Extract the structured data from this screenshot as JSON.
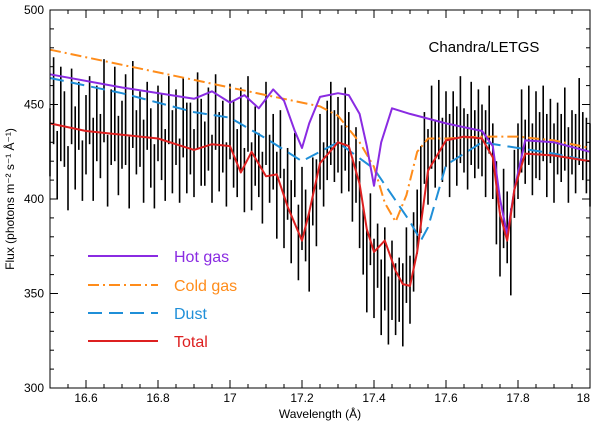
{
  "chart_data": {
    "type": "line",
    "title": "Chandra/LETGS",
    "xlabel": "Wavelength (Å)",
    "ylabel": "Flux (photons m⁻² s⁻¹ Å⁻¹)",
    "xlim": [
      16.5,
      18.0
    ],
    "ylim": [
      300,
      500
    ],
    "xticks": [
      16.6,
      16.8,
      17,
      17.2,
      17.4,
      17.6,
      17.8,
      18
    ],
    "xtick_labels": [
      "16.6",
      "16.8",
      "17",
      "17.2",
      "17.4",
      "17.6",
      "17.8",
      "18"
    ],
    "yticks": [
      300,
      350,
      400,
      450,
      500
    ],
    "ytick_labels": [
      "300",
      "350",
      "400",
      "450",
      "500"
    ],
    "legend_position": "lower-left",
    "series": [
      {
        "name": "Hot gas",
        "color": "#8a2be2",
        "style": "solid",
        "x": [
          16.5,
          16.7,
          16.9,
          16.95,
          17.0,
          17.04,
          17.08,
          17.12,
          17.15,
          17.18,
          17.2,
          17.22,
          17.25,
          17.3,
          17.33,
          17.36,
          17.38,
          17.4,
          17.42,
          17.45,
          17.5,
          17.6,
          17.7,
          17.73,
          17.75,
          17.77,
          17.79,
          17.82,
          17.9,
          18.0
        ],
        "y": [
          466,
          459,
          453,
          457,
          451,
          455,
          448,
          458,
          452,
          436,
          427,
          440,
          454,
          456,
          455,
          445,
          428,
          407,
          430,
          448,
          445,
          440,
          436,
          428,
          400,
          381,
          405,
          431,
          430,
          425
        ]
      },
      {
        "name": "Cold gas",
        "color": "#ff8c1a",
        "style": "dashdot",
        "x": [
          16.5,
          16.7,
          16.9,
          17.1,
          17.25,
          17.3,
          17.33,
          17.36,
          17.4,
          17.43,
          17.46,
          17.49,
          17.52,
          17.55,
          17.6,
          17.7,
          17.8,
          17.9,
          18.0
        ],
        "y": [
          479,
          471,
          463,
          455,
          449,
          444,
          437,
          430,
          417,
          398,
          388,
          402,
          425,
          432,
          432,
          433,
          433,
          431,
          427
        ]
      },
      {
        "name": "Dust",
        "color": "#1f8fd8",
        "style": "dashed",
        "x": [
          16.5,
          16.7,
          16.9,
          17.0,
          17.1,
          17.2,
          17.3,
          17.4,
          17.45,
          17.5,
          17.53,
          17.55,
          17.6,
          17.7,
          17.8,
          17.9,
          18.0
        ],
        "y": [
          464,
          456,
          446,
          443,
          432,
          420,
          430,
          416,
          402,
          388,
          378,
          385,
          418,
          430,
          427,
          424,
          420
        ]
      },
      {
        "name": "Total",
        "color": "#dd2020",
        "style": "solid",
        "x": [
          16.5,
          16.6,
          16.8,
          16.9,
          16.95,
          17.0,
          17.03,
          17.06,
          17.1,
          17.13,
          17.16,
          17.2,
          17.22,
          17.25,
          17.3,
          17.33,
          17.36,
          17.38,
          17.4,
          17.43,
          17.46,
          17.48,
          17.5,
          17.52,
          17.55,
          17.6,
          17.65,
          17.7,
          17.73,
          17.75,
          17.77,
          17.79,
          17.82,
          17.9,
          18.0
        ],
        "y": [
          440,
          436,
          432,
          426,
          429,
          428,
          414,
          425,
          412,
          413,
          396,
          378,
          393,
          419,
          430,
          428,
          408,
          384,
          372,
          378,
          362,
          355,
          354,
          372,
          415,
          431,
          433,
          432,
          422,
          392,
          378,
          405,
          424,
          423,
          420
        ]
      }
    ],
    "observed": {
      "name": "Observed data",
      "color": "#000000",
      "x": [
        16.5,
        16.51,
        16.52,
        16.53,
        16.54,
        16.55,
        16.56,
        16.57,
        16.58,
        16.59,
        16.6,
        16.61,
        16.62,
        16.63,
        16.64,
        16.65,
        16.66,
        16.67,
        16.68,
        16.69,
        16.7,
        16.71,
        16.72,
        16.73,
        16.74,
        16.75,
        16.76,
        16.77,
        16.78,
        16.79,
        16.8,
        16.81,
        16.82,
        16.83,
        16.84,
        16.85,
        16.86,
        16.87,
        16.88,
        16.89,
        16.9,
        16.91,
        16.92,
        16.93,
        16.94,
        16.95,
        16.96,
        16.97,
        16.98,
        16.99,
        17.0,
        17.01,
        17.02,
        17.03,
        17.04,
        17.05,
        17.06,
        17.07,
        17.08,
        17.09,
        17.1,
        17.11,
        17.12,
        17.13,
        17.14,
        17.15,
        17.16,
        17.17,
        17.18,
        17.19,
        17.2,
        17.21,
        17.22,
        17.23,
        17.24,
        17.25,
        17.26,
        17.27,
        17.28,
        17.29,
        17.3,
        17.31,
        17.32,
        17.33,
        17.34,
        17.35,
        17.36,
        17.37,
        17.38,
        17.39,
        17.4,
        17.41,
        17.42,
        17.43,
        17.44,
        17.45,
        17.46,
        17.47,
        17.48,
        17.49,
        17.5,
        17.51,
        17.52,
        17.53,
        17.54,
        17.55,
        17.56,
        17.57,
        17.58,
        17.59,
        17.6,
        17.61,
        17.62,
        17.63,
        17.64,
        17.65,
        17.66,
        17.67,
        17.68,
        17.69,
        17.7,
        17.71,
        17.72,
        17.73,
        17.74,
        17.75,
        17.76,
        17.77,
        17.78,
        17.79,
        17.8,
        17.81,
        17.82,
        17.83,
        17.84,
        17.85,
        17.86,
        17.87,
        17.88,
        17.89,
        17.9,
        17.91,
        17.92,
        17.93,
        17.94,
        17.95,
        17.96,
        17.97,
        17.98,
        17.99,
        18.0
      ],
      "y": [
        430,
        452,
        418,
        445,
        437,
        411,
        449,
        427,
        444,
        415,
        434,
        447,
        421,
        440,
        428,
        452,
        415,
        438,
        445,
        423,
        434,
        442,
        414,
        450,
        430,
        437,
        420,
        444,
        427,
        412,
        440,
        433,
        418,
        447,
        425,
        438,
        415,
        443,
        427,
        432,
        419,
        447,
        430,
        424,
        437,
        416,
        446,
        425,
        433,
        413,
        441,
        429,
        419,
        437,
        410,
        445,
        412,
        428,
        418,
        406,
        440,
        416,
        425,
        402,
        429,
        395,
        408,
        388,
        418,
        377,
        395,
        386,
        372,
        404,
        398,
        425,
        413,
        431,
        440,
        428,
        434,
        421,
        437,
        425,
        405,
        418,
        397,
        378,
        362,
        384,
        358,
        370,
        348,
        363,
        341,
        357,
        347,
        352,
        344,
        365,
        352,
        372,
        388,
        405,
        427,
        417,
        438,
        424,
        442,
        426,
        437,
        423,
        439,
        428,
        442,
        431,
        425,
        440,
        429,
        437,
        431,
        424,
        442,
        420,
        398,
        376,
        395,
        385,
        372,
        408,
        420,
        436,
        425,
        439,
        421,
        434,
        428,
        440,
        423,
        436,
        419,
        432,
        427,
        437,
        418,
        430,
        424,
        441,
        428,
        423,
        418
      ],
      "err": [
        18,
        23,
        18,
        25,
        20,
        17,
        20,
        22,
        18,
        16,
        21,
        18,
        22,
        20,
        17,
        22,
        19,
        20,
        25,
        21,
        18,
        24,
        19,
        23,
        17,
        20,
        22,
        18,
        21,
        17,
        20,
        23,
        19,
        18,
        22,
        20,
        17,
        21,
        24,
        19,
        18,
        20,
        23,
        17,
        22,
        18,
        20,
        21,
        19,
        17,
        20,
        23,
        18,
        22,
        17,
        20,
        18,
        21,
        17,
        19,
        22,
        18,
        20,
        23,
        18,
        21,
        19,
        22,
        17,
        20,
        22,
        19,
        21,
        18,
        23,
        20,
        17,
        21,
        22,
        19,
        20,
        18,
        22,
        21,
        17,
        20,
        23,
        18,
        22,
        19,
        21,
        17,
        20,
        22,
        18,
        21,
        19,
        17,
        22,
        20,
        18,
        21,
        17,
        23,
        19,
        20,
        22,
        18,
        21,
        17,
        20,
        22,
        18,
        21,
        23,
        17,
        20,
        22,
        18,
        21,
        19,
        23,
        18,
        20,
        22,
        17,
        21,
        19,
        23,
        18,
        20,
        22,
        17,
        21,
        19,
        23,
        18,
        20,
        22,
        17,
        21,
        19,
        18,
        22,
        20,
        17,
        21,
        23,
        18,
        20,
        22
      ]
    }
  }
}
